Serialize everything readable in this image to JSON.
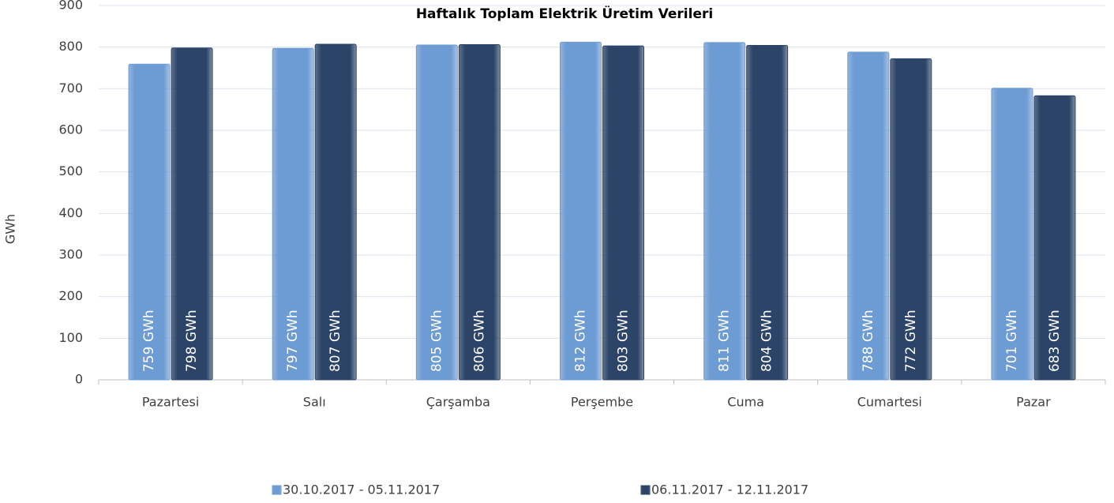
{
  "chart_data": {
    "type": "bar",
    "title": "Haftalık Toplam Elektrik Üretim Verileri",
    "y_label": "GWh",
    "categories": [
      "Pazartesi",
      "Salı",
      "Çarşamba",
      "Perşembe",
      "Cuma",
      "Cumartesi",
      "Pazar"
    ],
    "series": [
      {
        "name": "30.10.2017 - 05.11.2017",
        "color": "#6d9bd3",
        "values": [
          759,
          797,
          805,
          812,
          811,
          788,
          701
        ],
        "value_labels": [
          "759 GWh",
          "797 GWh",
          "805 GWh",
          "812 GWh",
          "811 GWh",
          "788 GWh",
          "701 GWh"
        ]
      },
      {
        "name": "06.11.2017 - 12.11.2017",
        "color": "#2b4468",
        "values": [
          798,
          807,
          806,
          803,
          804,
          772,
          683
        ],
        "value_labels": [
          "798 GWh",
          "807 GWh",
          "806 GWh",
          "803 GWh",
          "804 GWh",
          "772 GWh",
          "683 GWh"
        ]
      }
    ],
    "ylim": [
      0,
      900
    ],
    "yticks": [
      0,
      100,
      200,
      300,
      400,
      500,
      600,
      700,
      800,
      900
    ],
    "grid": true,
    "legend": "bottom"
  }
}
